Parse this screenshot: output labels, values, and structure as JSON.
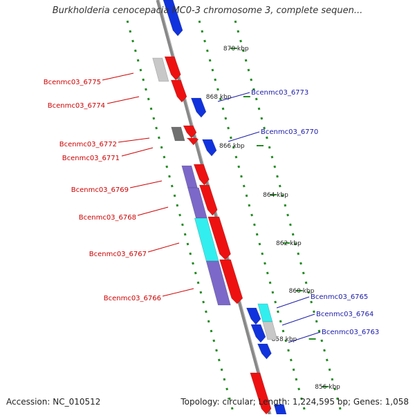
{
  "title": "Burkholderia cenocepacia MC0-3 chromosome 3, complete sequen...",
  "footer": {
    "accession": "Accession: NC_010512",
    "summary": "Topology: circular; Length: 1,224,595 bp; Genes: 1,058"
  },
  "colors": {
    "forward_gene": "#ee1111",
    "reverse_gene": "#1133dd",
    "left_label": "#cc0000",
    "right_label": "#1a1aa8",
    "backbone": "#888888",
    "tick": "#228b22",
    "cds_lavender": "#7b68c8",
    "cds_cyan": "#33eeee",
    "cds_gray": "#c8c8c8",
    "cds_darkgray": "#707070"
  },
  "ticks": [
    {
      "label": "870 kbp"
    },
    {
      "label": "868 kbp"
    },
    {
      "label": "866 kbp"
    },
    {
      "label": "864 kbp"
    },
    {
      "label": "862 kbp"
    },
    {
      "label": "860 kbp"
    },
    {
      "label": "858 kbp"
    },
    {
      "label": "856 kbp"
    }
  ],
  "left_labels": [
    {
      "text": "Bcenmc03_6775"
    },
    {
      "text": "Bcenmc03_6774"
    },
    {
      "text": "Bcenmc03_6772"
    },
    {
      "text": "Bcenmc03_6771"
    },
    {
      "text": "Bcenmc03_6769"
    },
    {
      "text": "Bcenmc03_6768"
    },
    {
      "text": "Bcenmc03_6767"
    },
    {
      "text": "Bcenmc03_6766"
    }
  ],
  "right_labels": [
    {
      "text": "Bcenmc03_6773"
    },
    {
      "text": "Bcenmc03_6770"
    },
    {
      "text": "Bcenmc03_6765"
    },
    {
      "text": "Bcenmc03_6764"
    },
    {
      "text": "Bcenmc03_6763"
    }
  ]
}
